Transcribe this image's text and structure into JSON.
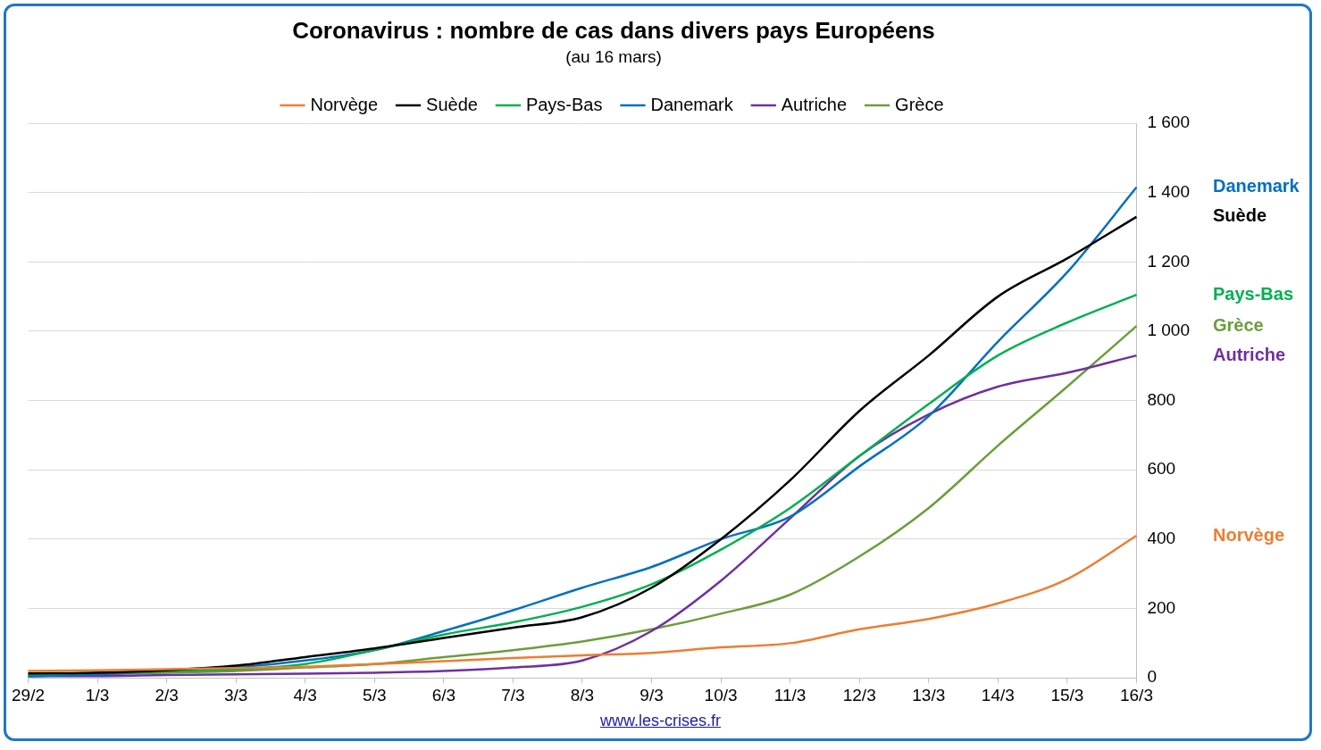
{
  "chart_data": {
    "type": "line",
    "title": "Coronavirus : nombre de cas dans divers pays Européens",
    "subtitle": "(au 16 mars)",
    "source": "www.les-crises.fr",
    "categories": [
      "29/2",
      "1/3",
      "2/3",
      "3/3",
      "4/3",
      "5/3",
      "6/3",
      "7/3",
      "8/3",
      "9/3",
      "10/3",
      "11/3",
      "12/3",
      "13/3",
      "14/3",
      "15/3",
      "16/3"
    ],
    "series": [
      {
        "name": "Norvège",
        "color": "#ed7d31",
        "values": [
          20,
          22,
          25,
          28,
          32,
          40,
          48,
          57,
          65,
          72,
          88,
          100,
          140,
          170,
          215,
          285,
          410
        ]
      },
      {
        "name": "Suède",
        "color": "#000000",
        "values": [
          13,
          15,
          22,
          35,
          60,
          85,
          115,
          145,
          175,
          260,
          400,
          570,
          770,
          930,
          1100,
          1210,
          1330
        ]
      },
      {
        "name": "Pays-Bas",
        "color": "#00b050",
        "values": [
          10,
          15,
          20,
          25,
          40,
          80,
          125,
          160,
          205,
          270,
          370,
          490,
          640,
          790,
          930,
          1025,
          1105
        ]
      },
      {
        "name": "Danemark",
        "color": "#0070c0",
        "values": [
          5,
          10,
          20,
          30,
          50,
          80,
          135,
          195,
          260,
          320,
          400,
          465,
          610,
          755,
          970,
          1170,
          1415
        ]
      },
      {
        "name": "Autriche",
        "color": "#7030a0",
        "values": [
          5,
          5,
          8,
          10,
          12,
          15,
          20,
          30,
          50,
          135,
          280,
          460,
          640,
          760,
          840,
          880,
          930
        ]
      },
      {
        "name": "Grèce",
        "color": "#6b9e3a",
        "values": [
          5,
          10,
          15,
          20,
          30,
          40,
          60,
          80,
          105,
          140,
          185,
          240,
          350,
          490,
          670,
          840,
          1015
        ]
      }
    ],
    "annotations": [
      "Danemark",
      "Suède",
      "Pays-Bas",
      "Grèce",
      "Autriche",
      "Norvège"
    ],
    "ylim": [
      0,
      1600
    ],
    "yticks": [
      0,
      200,
      400,
      600,
      800,
      {
        "value": 1000,
        "label": "1 000"
      },
      {
        "value": 1200,
        "label": "1 200"
      },
      {
        "value": 1400,
        "label": "1 400"
      },
      {
        "value": 1600,
        "label": "1 600"
      }
    ],
    "grid": true,
    "legend": "top"
  }
}
